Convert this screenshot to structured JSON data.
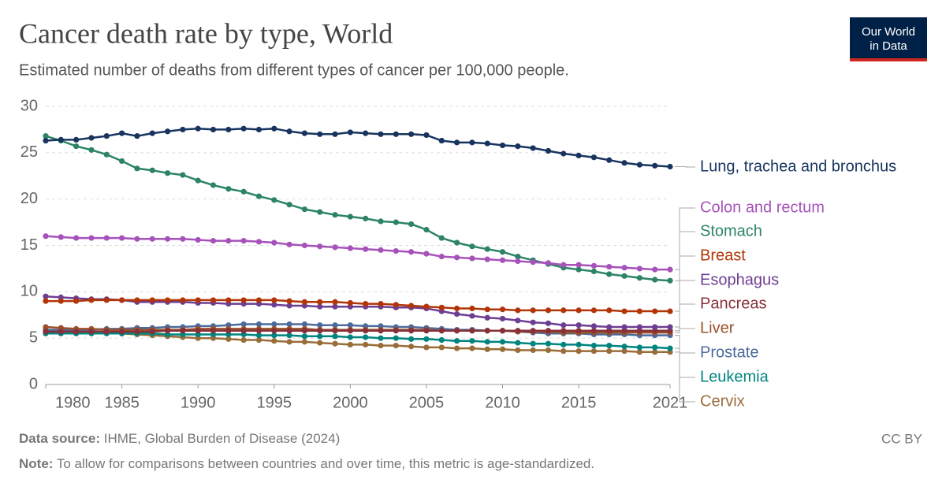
{
  "chart_data": {
    "type": "line",
    "title": "Cancer death rate by type, World",
    "subtitle": "Estimated number of deaths from different types of cancer per 100,000 people.",
    "source_label": "Data source:",
    "source": "IHME, Global Burden of Disease (2024)",
    "note_label": "Note:",
    "note": "To allow for comparisons between countries and over time, this metric is age-standardized.",
    "license": "CC BY",
    "logo": [
      "Our World",
      "in Data"
    ],
    "x": [
      1980,
      1981,
      1982,
      1983,
      1984,
      1985,
      1986,
      1987,
      1988,
      1989,
      1990,
      1991,
      1992,
      1993,
      1994,
      1995,
      1996,
      1997,
      1998,
      1999,
      2000,
      2001,
      2002,
      2003,
      2004,
      2005,
      2006,
      2007,
      2008,
      2009,
      2010,
      2011,
      2012,
      2013,
      2014,
      2015,
      2016,
      2017,
      2018,
      2019,
      2020,
      2021
    ],
    "xlim": [
      1980,
      2021
    ],
    "xticks": [
      1980,
      1985,
      1990,
      1995,
      2000,
      2005,
      2010,
      2015,
      2021
    ],
    "ylim": [
      0,
      30
    ],
    "yticks": [
      0,
      5,
      10,
      15,
      20,
      25,
      30
    ],
    "grid": true,
    "series": [
      {
        "name": "Lung, trachea and bronchus",
        "color": "#18345e",
        "values": [
          26.3,
          26.4,
          26.4,
          26.6,
          26.8,
          27.1,
          26.8,
          27.1,
          27.3,
          27.5,
          27.6,
          27.5,
          27.5,
          27.6,
          27.5,
          27.6,
          27.3,
          27.1,
          27.0,
          27.0,
          27.2,
          27.1,
          27.0,
          27.0,
          27.0,
          26.9,
          26.3,
          26.1,
          26.1,
          26.0,
          25.8,
          25.7,
          25.5,
          25.2,
          24.9,
          24.7,
          24.5,
          24.2,
          23.9,
          23.7,
          23.6,
          23.5
        ]
      },
      {
        "name": "Colon and rectum",
        "color": "#a652ba",
        "values": [
          16.0,
          15.9,
          15.8,
          15.8,
          15.8,
          15.8,
          15.7,
          15.7,
          15.7,
          15.7,
          15.6,
          15.5,
          15.5,
          15.5,
          15.4,
          15.3,
          15.1,
          15.0,
          14.9,
          14.8,
          14.7,
          14.6,
          14.5,
          14.4,
          14.3,
          14.1,
          13.8,
          13.7,
          13.6,
          13.5,
          13.4,
          13.3,
          13.2,
          13.1,
          12.9,
          12.9,
          12.8,
          12.7,
          12.6,
          12.5,
          12.4,
          12.4
        ]
      },
      {
        "name": "Stomach",
        "color": "#2c8465",
        "values": [
          26.8,
          26.3,
          25.7,
          25.3,
          24.8,
          24.1,
          23.3,
          23.1,
          22.8,
          22.6,
          22.0,
          21.5,
          21.1,
          20.8,
          20.3,
          19.9,
          19.4,
          18.9,
          18.6,
          18.3,
          18.1,
          17.9,
          17.6,
          17.5,
          17.3,
          16.7,
          15.8,
          15.3,
          14.9,
          14.6,
          14.3,
          13.8,
          13.4,
          13.0,
          12.6,
          12.4,
          12.2,
          11.9,
          11.7,
          11.5,
          11.3,
          11.2
        ]
      },
      {
        "name": "Breast",
        "color": "#b13507",
        "values": [
          9.0,
          9.0,
          9.0,
          9.1,
          9.1,
          9.1,
          9.1,
          9.1,
          9.1,
          9.1,
          9.1,
          9.1,
          9.1,
          9.1,
          9.1,
          9.1,
          9.0,
          8.9,
          8.9,
          8.9,
          8.8,
          8.7,
          8.7,
          8.6,
          8.5,
          8.4,
          8.3,
          8.2,
          8.2,
          8.1,
          8.1,
          8.0,
          8.0,
          8.0,
          8.0,
          8.0,
          8.0,
          8.0,
          7.9,
          7.9,
          7.9,
          7.9
        ]
      },
      {
        "name": "Esophagus",
        "color": "#6d3e91",
        "values": [
          9.5,
          9.4,
          9.3,
          9.2,
          9.2,
          9.1,
          8.9,
          8.9,
          8.9,
          8.9,
          8.8,
          8.8,
          8.7,
          8.7,
          8.7,
          8.6,
          8.5,
          8.5,
          8.4,
          8.4,
          8.4,
          8.4,
          8.4,
          8.3,
          8.3,
          8.2,
          7.9,
          7.6,
          7.4,
          7.2,
          7.1,
          6.9,
          6.7,
          6.6,
          6.4,
          6.4,
          6.3,
          6.2,
          6.2,
          6.2,
          6.2,
          6.2
        ]
      },
      {
        "name": "Pancreas",
        "color": "#883039",
        "values": [
          5.7,
          5.7,
          5.7,
          5.7,
          5.7,
          5.7,
          5.7,
          5.7,
          5.8,
          5.8,
          5.8,
          5.8,
          5.8,
          5.8,
          5.8,
          5.8,
          5.8,
          5.8,
          5.8,
          5.8,
          5.8,
          5.8,
          5.8,
          5.8,
          5.8,
          5.8,
          5.8,
          5.8,
          5.8,
          5.8,
          5.8,
          5.8,
          5.8,
          5.8,
          5.8,
          5.8,
          5.8,
          5.8,
          5.8,
          5.8,
          5.8,
          5.8
        ]
      },
      {
        "name": "Liver",
        "color": "#9a5129",
        "values": [
          6.2,
          6.1,
          6.0,
          6.0,
          5.9,
          5.9,
          5.9,
          5.9,
          5.9,
          5.9,
          6.0,
          6.0,
          6.0,
          6.0,
          6.0,
          6.0,
          6.0,
          6.0,
          5.9,
          5.9,
          5.9,
          5.9,
          5.9,
          5.9,
          5.9,
          5.9,
          5.8,
          5.8,
          5.8,
          5.8,
          5.8,
          5.7,
          5.7,
          5.7,
          5.6,
          5.6,
          5.6,
          5.6,
          5.6,
          5.6,
          5.6,
          5.6
        ]
      },
      {
        "name": "Prostate",
        "color": "#4c6a9c",
        "values": [
          5.9,
          5.9,
          5.9,
          5.9,
          6.0,
          6.0,
          6.1,
          6.1,
          6.2,
          6.2,
          6.3,
          6.3,
          6.4,
          6.5,
          6.5,
          6.5,
          6.5,
          6.5,
          6.4,
          6.4,
          6.4,
          6.3,
          6.3,
          6.2,
          6.2,
          6.1,
          6.0,
          5.9,
          5.9,
          5.8,
          5.8,
          5.7,
          5.6,
          5.5,
          5.5,
          5.5,
          5.4,
          5.4,
          5.4,
          5.3,
          5.3,
          5.3
        ]
      },
      {
        "name": "Leukemia",
        "color": "#00847e",
        "values": [
          5.5,
          5.5,
          5.5,
          5.5,
          5.5,
          5.5,
          5.5,
          5.5,
          5.4,
          5.4,
          5.4,
          5.4,
          5.4,
          5.4,
          5.3,
          5.3,
          5.3,
          5.2,
          5.2,
          5.2,
          5.1,
          5.1,
          5.0,
          5.0,
          4.9,
          4.9,
          4.8,
          4.7,
          4.7,
          4.6,
          4.6,
          4.5,
          4.4,
          4.4,
          4.3,
          4.3,
          4.2,
          4.2,
          4.1,
          4.0,
          4.0,
          3.9
        ]
      },
      {
        "name": "Cervix",
        "color": "#996d39",
        "values": [
          5.9,
          5.8,
          5.7,
          5.6,
          5.6,
          5.5,
          5.4,
          5.3,
          5.2,
          5.1,
          5.0,
          5.0,
          4.9,
          4.8,
          4.8,
          4.7,
          4.6,
          4.6,
          4.5,
          4.4,
          4.3,
          4.3,
          4.2,
          4.2,
          4.1,
          4.0,
          4.0,
          3.9,
          3.9,
          3.8,
          3.8,
          3.7,
          3.7,
          3.7,
          3.6,
          3.6,
          3.6,
          3.6,
          3.6,
          3.5,
          3.5,
          3.5
        ]
      }
    ]
  }
}
